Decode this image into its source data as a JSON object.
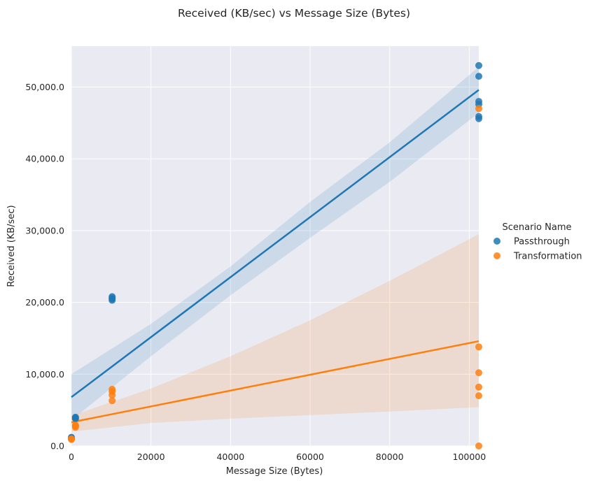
{
  "chart_data": {
    "type": "scatter",
    "title": "Received (KB/sec) vs Message Size (Bytes)",
    "xlabel": "Message Size (Bytes)",
    "ylabel": "Received (KB/sec)",
    "xlim": [
      0,
      102400
    ],
    "ylim": [
      0,
      55700
    ],
    "xticks": [
      0,
      20000,
      40000,
      60000,
      80000,
      100000
    ],
    "xtick_labels": [
      "0",
      "20000",
      "40000",
      "60000",
      "80000",
      "100000"
    ],
    "yticks": [
      0,
      10000,
      20000,
      30000,
      40000,
      50000
    ],
    "ytick_labels": [
      "0.0",
      "10,000.0",
      "20,000.0",
      "30,000.0",
      "40,000.0",
      "50,000.0"
    ],
    "grid": true,
    "background": "#e9eaf2",
    "legend": {
      "title": "Scenario Name",
      "placement": "right"
    },
    "series": [
      {
        "name": "Passthrough",
        "color": "#1f77b4",
        "points": [
          [
            0,
            1100
          ],
          [
            0,
            1200
          ],
          [
            1024,
            3800
          ],
          [
            1024,
            4000
          ],
          [
            1024,
            3900
          ],
          [
            10240,
            20800
          ],
          [
            10240,
            20500
          ],
          [
            10240,
            20300
          ],
          [
            10240,
            20600
          ],
          [
            102400,
            53000
          ],
          [
            102400,
            51500
          ],
          [
            102400,
            48000
          ],
          [
            102400,
            47600
          ],
          [
            102400,
            45900
          ],
          [
            102400,
            45600
          ]
        ],
        "regression": {
          "y_at_xmin": 6800,
          "y_at_xmax": 49600
        },
        "ci_band": [
          [
            0,
            3600,
            10000
          ],
          [
            20000,
            12500,
            17000
          ],
          [
            40000,
            21000,
            25000
          ],
          [
            60000,
            29000,
            34000
          ],
          [
            80000,
            36800,
            42300
          ],
          [
            102400,
            46400,
            52800
          ]
        ]
      },
      {
        "name": "Transformation",
        "color": "#ff7f0e",
        "points": [
          [
            0,
            900
          ],
          [
            0,
            1000
          ],
          [
            1024,
            2600
          ],
          [
            1024,
            2800
          ],
          [
            1024,
            2900
          ],
          [
            10240,
            7900
          ],
          [
            10240,
            7600
          ],
          [
            10240,
            7100
          ],
          [
            10240,
            6300
          ],
          [
            102400,
            47000
          ],
          [
            102400,
            13800
          ],
          [
            102400,
            10200
          ],
          [
            102400,
            8200
          ],
          [
            102400,
            7000
          ],
          [
            102400,
            0
          ]
        ],
        "regression": {
          "y_at_xmin": 3300,
          "y_at_xmax": 14600
        },
        "ci_band": [
          [
            0,
            2000,
            4200
          ],
          [
            20000,
            3200,
            8000
          ],
          [
            40000,
            3800,
            12500
          ],
          [
            60000,
            4300,
            17500
          ],
          [
            80000,
            4800,
            23000
          ],
          [
            102400,
            5400,
            29500
          ]
        ]
      }
    ]
  }
}
